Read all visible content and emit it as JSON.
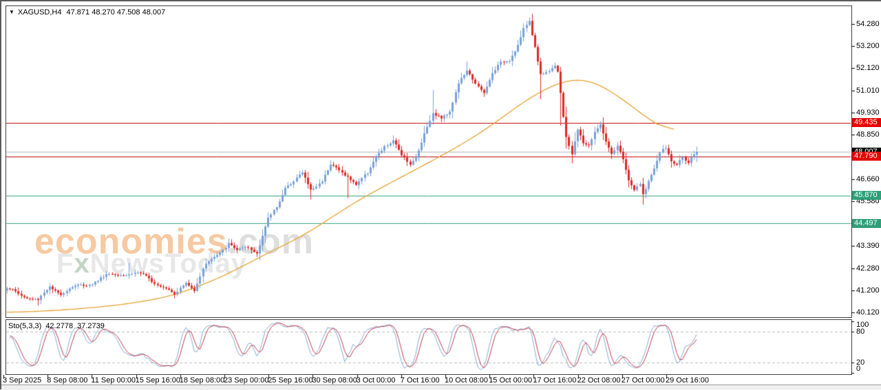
{
  "chart": {
    "symbol_dropdown_icon": "▼",
    "title_symbol": "XAGUSD,H4",
    "title_ohlc": "47.871 48.270 47.508 48.007"
  },
  "watermark": {
    "brand": "economies",
    "domain": ".com",
    "line2_pre": "F",
    "line2_x": "x",
    "line2_post": "NewsToday"
  },
  "indicator": {
    "name": "Sto(5,3,3)",
    "value_k": "42.2778",
    "value_d": "37.2739"
  },
  "colors": {
    "bull": "#7aa1d8",
    "bear": "#dd2a24",
    "ma": "#e8a131",
    "resistance": "#c00000",
    "support": "#33a17c",
    "current_line": "#b5b5b5",
    "badge_resistance": "#e60000",
    "badge_support": "#2f9e79",
    "badge_current": "#0b0b0b",
    "stoch_k": "#85a8d0",
    "stoch_d": "#bf3b4b",
    "stoch_level_dash": "#bbbbbb",
    "axis_text": "#000000"
  },
  "chart_data": {
    "type": "candlestick",
    "symbol": "XAGUSD",
    "timeframe": "H4",
    "candle_count": 244,
    "ohlc_current": {
      "open": 47.871,
      "high": 48.27,
      "low": 47.508,
      "close": 48.007
    },
    "visible_price_range": [
      39.9,
      55.2
    ],
    "price_axis_ticks": [
      {
        "label": "54.280",
        "value": 54.28
      },
      {
        "label": "53.200",
        "value": 53.2
      },
      {
        "label": "52.120",
        "value": 52.12
      },
      {
        "label": "51.010",
        "value": 51.01
      },
      {
        "label": "49.930",
        "value": 49.93
      },
      {
        "label": "48.850",
        "value": 48.85
      },
      {
        "label": "47.770",
        "value": 47.77
      },
      {
        "label": "46.660",
        "value": 46.66
      },
      {
        "label": "45.580",
        "value": 45.58
      },
      {
        "label": "44.500",
        "value": 44.5
      },
      {
        "label": "43.390",
        "value": 43.39
      },
      {
        "label": "42.280",
        "value": 42.28
      },
      {
        "label": "41.200",
        "value": 41.2
      },
      {
        "label": "40.120",
        "value": 40.12
      }
    ],
    "x_axis_labels": [
      "3 Sep 2025",
      "8 Sep 08:00",
      "11 Sep 00:00",
      "15 Sep 16:00",
      "18 Sep 08:00",
      "23 Sep 00:00",
      "25 Sep 16:00",
      "30 Sep 08:00",
      "3 Oct 00:00",
      "7 Oct 16:00",
      "10 Oct 08:00",
      "15 Oct 00:00",
      "17 Oct 16:00",
      "22 Oct 08:00",
      "27 Oct 00:00",
      "29 Oct 16:00"
    ],
    "horizontal_levels": [
      {
        "price": 49.435,
        "kind": "resistance"
      },
      {
        "price": 47.79,
        "kind": "resistance"
      },
      {
        "price": 45.87,
        "kind": "support"
      },
      {
        "price": 44.497,
        "kind": "support"
      }
    ],
    "current_price": 48.007,
    "price_badges": [
      {
        "label": "49.435",
        "price": 49.435,
        "type": "resistance"
      },
      {
        "label": "48.007",
        "price": 48.007,
        "type": "current"
      },
      {
        "label": "47.790",
        "price": 47.79,
        "type": "resistance"
      },
      {
        "label": "45.870",
        "price": 45.87,
        "type": "support"
      },
      {
        "label": "44.497",
        "price": 44.497,
        "type": "support"
      }
    ],
    "close_path_anchors": [
      [
        0,
        41.25
      ],
      [
        5,
        41.0
      ],
      [
        11,
        40.7
      ],
      [
        15,
        41.35
      ],
      [
        19,
        41.1
      ],
      [
        24,
        41.35
      ],
      [
        29,
        41.55
      ],
      [
        35,
        41.9
      ],
      [
        40,
        42.05
      ],
      [
        46,
        42.0
      ],
      [
        50,
        41.8
      ],
      [
        55,
        41.4
      ],
      [
        59,
        40.95
      ],
      [
        63,
        41.65
      ],
      [
        66,
        41.25
      ],
      [
        70,
        42.45
      ],
      [
        74,
        43.0
      ],
      [
        78,
        43.5
      ],
      [
        81,
        43.1
      ],
      [
        85,
        43.35
      ],
      [
        88,
        43.1
      ],
      [
        92,
        44.65
      ],
      [
        95,
        45.3
      ],
      [
        98,
        46.3
      ],
      [
        101,
        46.6
      ],
      [
        104,
        46.9
      ],
      [
        107,
        46.15
      ],
      [
        111,
        46.65
      ],
      [
        114,
        47.35
      ],
      [
        117,
        47.05
      ],
      [
        120,
        46.85
      ],
      [
        123,
        46.45
      ],
      [
        127,
        46.9
      ],
      [
        130,
        47.8
      ],
      [
        133,
        48.35
      ],
      [
        136,
        48.5
      ],
      [
        139,
        47.8
      ],
      [
        142,
        47.45
      ],
      [
        144,
        47.8
      ],
      [
        147,
        48.9
      ],
      [
        150,
        49.8
      ],
      [
        153,
        49.7
      ],
      [
        156,
        50.1
      ],
      [
        159,
        51.35
      ],
      [
        162,
        51.9
      ],
      [
        165,
        51.45
      ],
      [
        168,
        50.95
      ],
      [
        171,
        51.8
      ],
      [
        174,
        52.35
      ],
      [
        177,
        52.6
      ],
      [
        180,
        53.3
      ],
      [
        182,
        54.0
      ],
      [
        184,
        54.35
      ],
      [
        186,
        53.1
      ],
      [
        188,
        51.9
      ],
      [
        190,
        52.0
      ],
      [
        193,
        52.25
      ],
      [
        194,
        51.9
      ],
      [
        195,
        50.8
      ],
      [
        196,
        49.6
      ],
      [
        197,
        48.7
      ],
      [
        199,
        47.95
      ],
      [
        201,
        49.2
      ],
      [
        203,
        48.5
      ],
      [
        205,
        48.25
      ],
      [
        207,
        48.9
      ],
      [
        209,
        49.3
      ],
      [
        211,
        48.6
      ],
      [
        213,
        47.95
      ],
      [
        215,
        48.3
      ],
      [
        217,
        47.6
      ],
      [
        219,
        46.5
      ],
      [
        221,
        46.15
      ],
      [
        223,
        46.5
      ],
      [
        224,
        46.0
      ],
      [
        226,
        46.6
      ],
      [
        228,
        47.1
      ],
      [
        230,
        47.9
      ],
      [
        232,
        48.2
      ],
      [
        234,
        47.6
      ],
      [
        236,
        47.45
      ],
      [
        238,
        47.8
      ],
      [
        240,
        47.35
      ],
      [
        241,
        47.6
      ],
      [
        243,
        48.007
      ]
    ],
    "wick_extremes": {
      "11": {
        "low": 40.45
      },
      "43": {
        "high": 42.55
      },
      "78": {
        "high": 43.75
      },
      "107": {
        "low": 45.68
      },
      "114": {
        "high": 47.6
      },
      "120": {
        "low": 45.75
      },
      "136": {
        "high": 48.82
      },
      "150": {
        "high": 51.05
      },
      "162": {
        "high": 52.45
      },
      "184": {
        "high": 54.47
      },
      "188": {
        "low": 50.6
      },
      "195": {
        "low": 49.3
      },
      "199": {
        "low": 47.45
      },
      "209": {
        "high": 49.42
      },
      "224": {
        "low": 45.42
      },
      "232": {
        "high": 48.35
      }
    },
    "moving_average_anchors": [
      [
        0,
        40.1
      ],
      [
        22,
        40.25
      ],
      [
        41,
        40.5
      ],
      [
        58,
        40.9
      ],
      [
        75,
        41.8
      ],
      [
        90,
        42.9
      ],
      [
        106,
        44.0
      ],
      [
        122,
        45.5
      ],
      [
        138,
        46.7
      ],
      [
        155,
        47.95
      ],
      [
        170,
        49.2
      ],
      [
        182,
        50.5
      ],
      [
        192,
        51.3
      ],
      [
        201,
        51.73
      ],
      [
        209,
        51.4
      ],
      [
        216,
        50.7
      ],
      [
        223,
        49.95
      ],
      [
        229,
        49.35
      ],
      [
        235,
        48.55
      ]
    ],
    "stochastic": {
      "params": [
        5,
        3,
        3
      ],
      "current_k": 42.2778,
      "current_d": 37.2739,
      "axis_ticks": [
        {
          "label": "100",
          "value": 100
        },
        {
          "label": "80",
          "value": 80
        },
        {
          "label": "20",
          "value": 20
        },
        {
          "label": "0",
          "value": 0
        }
      ],
      "dashed_levels": [
        80,
        20
      ]
    }
  }
}
